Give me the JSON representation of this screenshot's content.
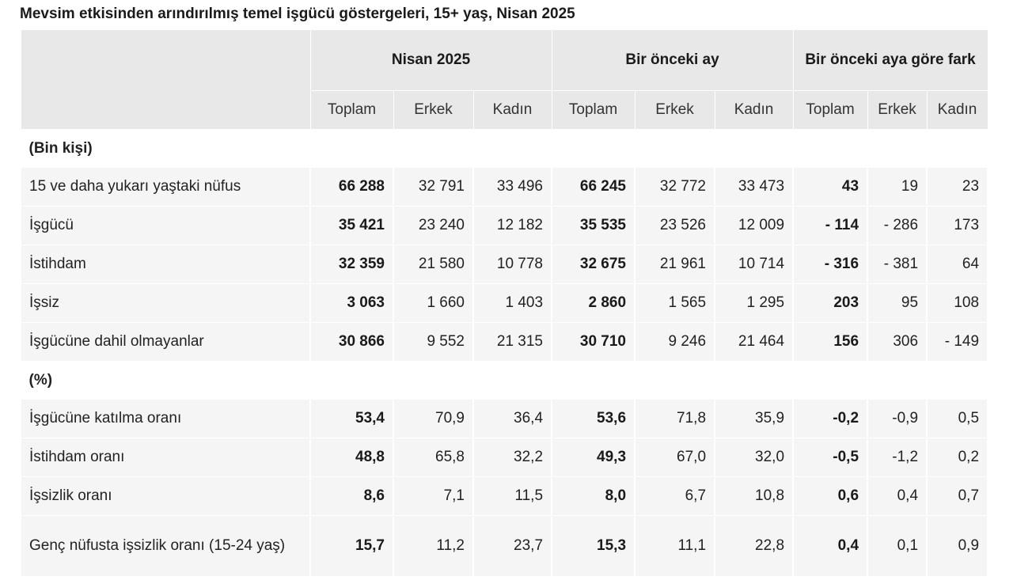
{
  "title": "Mevsim etkisinden arındırılmış temel işgücü göstergeleri, 15+ yaş, Nisan 2025",
  "headers": {
    "groups": [
      "Nisan 2025",
      "Bir önceki ay",
      "Bir önceki aya göre fark"
    ],
    "sub": [
      "Toplam",
      "Erkek",
      "Kadın",
      "Toplam",
      "Erkek",
      "Kadın",
      "Toplam",
      "Erkek",
      "Kadın"
    ]
  },
  "sections": [
    {
      "label": "(Bin kişi)",
      "rows": [
        {
          "label": "15 ve daha yukarı yaştaki nüfus",
          "values": [
            "66 288",
            "32 791",
            "33 496",
            "66 245",
            "32 772",
            "33 473",
            "43",
            "19",
            "23"
          ]
        },
        {
          "label": "İşgücü",
          "values": [
            "35 421",
            "23 240",
            "12 182",
            "35 535",
            "23 526",
            "12 009",
            "- 114",
            "- 286",
            "173"
          ]
        },
        {
          "label": "İstihdam",
          "values": [
            "32 359",
            "21 580",
            "10 778",
            "32 675",
            "21 961",
            "10 714",
            "- 316",
            "- 381",
            "64"
          ]
        },
        {
          "label": "İşsiz",
          "values": [
            "3 063",
            "1 660",
            "1 403",
            "2 860",
            "1 565",
            "1 295",
            "203",
            "95",
            "108"
          ]
        },
        {
          "label": "İşgücüne dahil olmayanlar",
          "values": [
            "30 866",
            "9 552",
            "21 315",
            "30 710",
            "9 246",
            "21 464",
            "156",
            "306",
            "- 149"
          ]
        }
      ]
    },
    {
      "label": "(%)",
      "rows": [
        {
          "label": "İşgücüne katılma oranı",
          "values": [
            "53,4",
            "70,9",
            "36,4",
            "53,6",
            "71,8",
            "35,9",
            "-0,2",
            "-0,9",
            "0,5"
          ]
        },
        {
          "label": "İstihdam oranı",
          "values": [
            "48,8",
            "65,8",
            "32,2",
            "49,3",
            "67,0",
            "32,0",
            "-0,5",
            "-1,2",
            "0,2"
          ]
        },
        {
          "label": "İşsizlik oranı",
          "values": [
            "8,6",
            "7,1",
            "11,5",
            "8,0",
            "6,7",
            "10,8",
            "0,6",
            "0,4",
            "0,7"
          ]
        },
        {
          "label": "Genç nüfusta işsizlik oranı (15-24 yaş)",
          "values": [
            "15,7",
            "11,2",
            "23,7",
            "15,3",
            "11,1",
            "22,8",
            "0,4",
            "0,1",
            "0,9"
          ]
        }
      ]
    }
  ]
}
